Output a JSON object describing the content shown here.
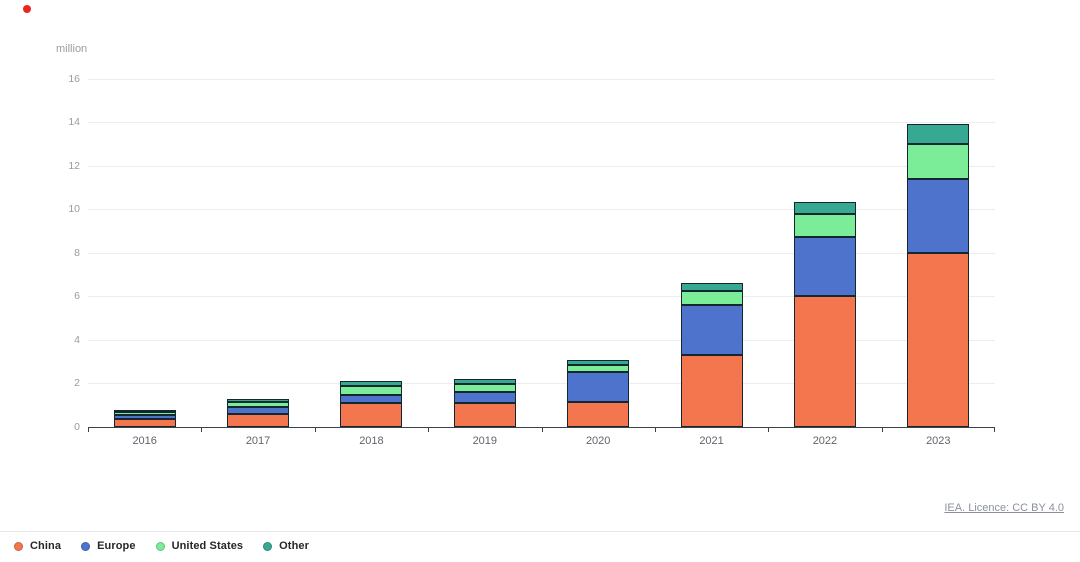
{
  "decorations": {
    "red_dot_color": "#e8281e"
  },
  "chart_data": {
    "type": "bar",
    "stacked": true,
    "title": "",
    "unit_label": "million",
    "xlabel": "",
    "ylabel": "million",
    "categories": [
      "2016",
      "2017",
      "2018",
      "2019",
      "2020",
      "2021",
      "2022",
      "2023"
    ],
    "series": [
      {
        "name": "China",
        "color": "#f4764e",
        "values": [
          0.35,
          0.6,
          1.1,
          1.1,
          1.15,
          3.3,
          6.0,
          8.0
        ]
      },
      {
        "name": "Europe",
        "color": "#4e73cd",
        "values": [
          0.2,
          0.3,
          0.35,
          0.5,
          1.4,
          2.3,
          2.7,
          3.4
        ]
      },
      {
        "name": "United States",
        "color": "#7bec98",
        "values": [
          0.15,
          0.25,
          0.4,
          0.35,
          0.3,
          0.65,
          1.05,
          1.6
        ]
      },
      {
        "name": "Other",
        "color": "#37a993",
        "values": [
          0.05,
          0.15,
          0.25,
          0.25,
          0.25,
          0.35,
          0.55,
          0.9
        ]
      }
    ],
    "ylim": [
      0,
      16
    ],
    "y_ticks": [
      0,
      2,
      4,
      6,
      8,
      10,
      12,
      14,
      16
    ],
    "grid": true,
    "bar_border_color": "#14262e",
    "legend_position": "bottom-left"
  },
  "footer": {
    "license_text": "IEA. Licence: CC BY 4.0"
  }
}
